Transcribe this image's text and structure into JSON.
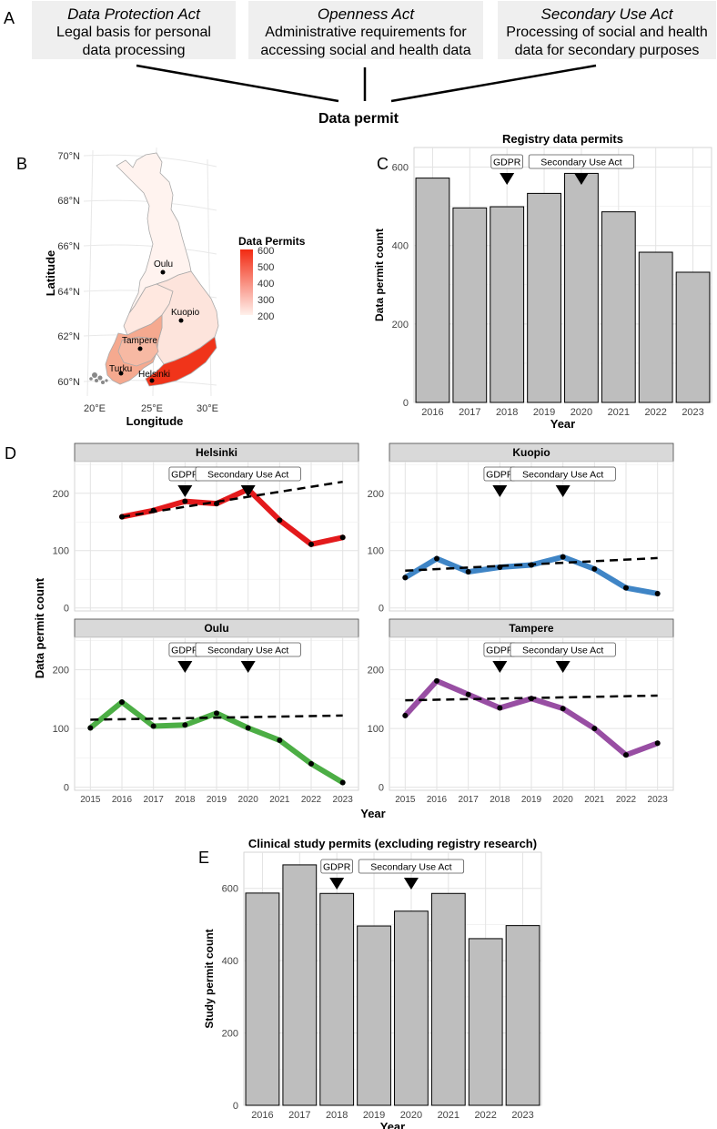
{
  "panel_letters": {
    "a": "A",
    "b": "B",
    "c": "C",
    "d": "D",
    "e": "E"
  },
  "panel_a": {
    "laws": [
      {
        "title": "Data Protection Act",
        "line1": "Legal basis for personal",
        "line2": "data processing"
      },
      {
        "title": "Openness Act",
        "line1": "Administrative requirements for",
        "line2": "accessing social and health data"
      },
      {
        "title": "Secondary Use Act",
        "line1": "Processing of social and health",
        "line2": "data for secondary purposes"
      }
    ],
    "result": "Data permit"
  },
  "map_panel": {
    "xlabel": "Longitude",
    "ylabel": "Latitude",
    "lat_ticks": [
      "70°N",
      "68°N",
      "66°N",
      "64°N",
      "62°N",
      "60°N"
    ],
    "lon_ticks": [
      "20°E",
      "25°E",
      "30°E"
    ],
    "cities": [
      "Oulu",
      "Kuopio",
      "Tampere",
      "Turku",
      "Helsinki"
    ],
    "legend_title": "Data Permits",
    "legend_ticks": [
      "600",
      "500",
      "400",
      "300",
      "200"
    ],
    "legend_colors": [
      "#fff1ec",
      "#f22a12"
    ]
  },
  "colors": {
    "bar_fill": "#bebebe",
    "Helsinki": "#e31a1c",
    "Kuopio": "#3f85c6",
    "Oulu": "#4cae45",
    "Tampere": "#984ea3",
    "strip": "#d9d9d9"
  },
  "chart_data": [
    {
      "id": "C",
      "type": "bar",
      "title": "Registry data permits",
      "xlabel": "Year",
      "ylabel": "Data permit count",
      "categories": [
        "2016",
        "2017",
        "2018",
        "2019",
        "2020",
        "2021",
        "2022",
        "2023"
      ],
      "values": [
        572,
        496,
        499,
        533,
        584,
        486,
        383,
        332
      ],
      "ylim": [
        0,
        650
      ],
      "yticks": [
        0,
        200,
        400,
        600
      ],
      "annotations": [
        {
          "label": "GDPR",
          "x": "2018"
        },
        {
          "label": "Secondary Use Act",
          "x": "2020"
        }
      ]
    },
    {
      "id": "D",
      "type": "line",
      "xlabel": "Year",
      "ylabel": "Data permit count",
      "x": [
        "2015",
        "2016",
        "2017",
        "2018",
        "2019",
        "2020",
        "2021",
        "2022",
        "2023"
      ],
      "ylim": [
        0,
        250
      ],
      "yticks": [
        0,
        100,
        200
      ],
      "annotations": [
        {
          "label": "GDPR",
          "x": "2018"
        },
        {
          "label": "Secondary Use Act",
          "x": "2020"
        }
      ],
      "series": [
        {
          "name": "Helsinki",
          "x": [
            "2016",
            "2017",
            "2018",
            "2019",
            "2020",
            "2021",
            "2022",
            "2023"
          ],
          "values": [
            159,
            170,
            186,
            182,
            207,
            153,
            111,
            123
          ],
          "trend": [
            159,
            220
          ]
        },
        {
          "name": "Kuopio",
          "x": [
            "2015",
            "2016",
            "2017",
            "2018",
            "2019",
            "2020",
            "2021",
            "2022",
            "2023"
          ],
          "values": [
            53,
            86,
            63,
            71,
            75,
            89,
            68,
            35,
            25
          ],
          "trend": [
            65,
            87
          ]
        },
        {
          "name": "Oulu",
          "x": [
            "2015",
            "2016",
            "2017",
            "2018",
            "2019",
            "2020",
            "2021",
            "2022",
            "2023"
          ],
          "values": [
            101,
            145,
            104,
            106,
            126,
            101,
            80,
            40,
            8
          ],
          "trend": [
            115,
            122
          ]
        },
        {
          "name": "Tampere",
          "x": [
            "2015",
            "2016",
            "2017",
            "2018",
            "2019",
            "2020",
            "2021",
            "2022",
            "2023"
          ],
          "values": [
            122,
            181,
            158,
            135,
            151,
            134,
            100,
            55,
            75
          ],
          "trend": [
            148,
            156
          ]
        }
      ]
    },
    {
      "id": "E",
      "type": "bar",
      "title": "Clinical study permits (excluding registry research)",
      "xlabel": "Year",
      "ylabel": "Study permit count",
      "categories": [
        "2016",
        "2017",
        "2018",
        "2019",
        "2020",
        "2021",
        "2022",
        "2023"
      ],
      "values": [
        587,
        665,
        586,
        496,
        537,
        586,
        461,
        497
      ],
      "ylim": [
        0,
        700
      ],
      "yticks": [
        0,
        200,
        400,
        600
      ],
      "annotations": [
        {
          "label": "GDPR",
          "x": "2018"
        },
        {
          "label": "Secondary Use Act",
          "x": "2020"
        }
      ]
    }
  ]
}
